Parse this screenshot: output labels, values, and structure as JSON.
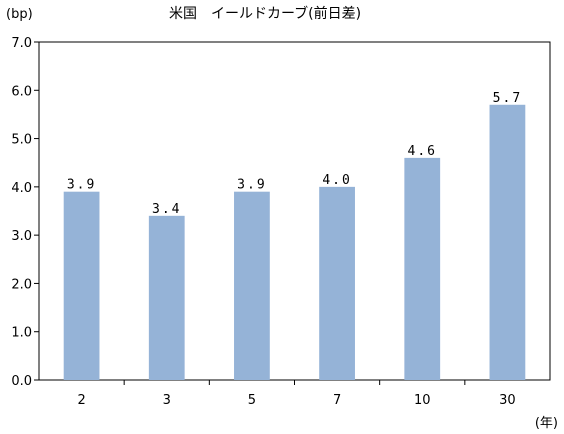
{
  "chart_data": {
    "type": "bar",
    "title": "米国　イールドカーブ(前日差)",
    "ylabel": "(bp)",
    "xlabel": "(年)",
    "categories": [
      "2",
      "3",
      "5",
      "7",
      "10",
      "30"
    ],
    "values": [
      3.9,
      3.4,
      3.9,
      4.0,
      4.6,
      5.7
    ],
    "data_labels": [
      "3.9",
      "3.4",
      "3.9",
      "4.0",
      "4.6",
      "5.7"
    ],
    "ylim": [
      0,
      7
    ],
    "yticks": [
      "0.0",
      "1.0",
      "2.0",
      "3.0",
      "4.0",
      "5.0",
      "6.0",
      "7.0"
    ],
    "grid": false,
    "bar_color": "#95B3D7",
    "axis_color": "#000000"
  }
}
